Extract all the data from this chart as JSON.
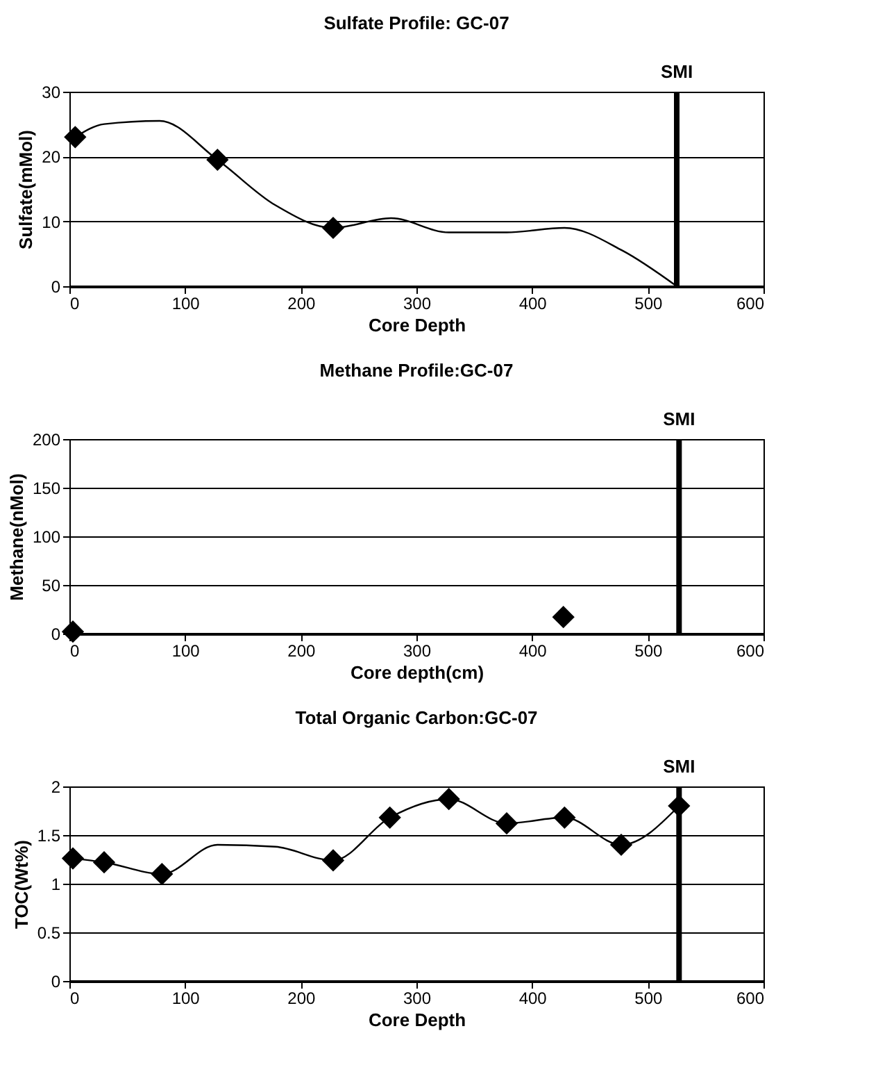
{
  "chart_data": [
    {
      "type": "line",
      "title": "Sulfate Profile: GC-07",
      "xlabel": "Core Depth",
      "ylabel": "Sulfate(mMol)",
      "xlim": [
        0,
        600
      ],
      "xticks": [
        0,
        100,
        200,
        300,
        400,
        500,
        600
      ],
      "ylim": [
        0,
        30
      ],
      "yticks": [
        0,
        10,
        20,
        30
      ],
      "grid": "y",
      "series": [
        {
          "color": "#000000",
          "marker": "none",
          "x": [
            5,
            30,
            78,
            128,
            178,
            228,
            278,
            328,
            378,
            428,
            478,
            525
          ],
          "values": [
            23,
            25,
            25.5,
            19.5,
            12.5,
            9,
            10.5,
            8.3,
            8.3,
            9,
            5.5,
            0
          ]
        },
        {
          "type": "scatter",
          "color": "#000000",
          "marker": "diamond",
          "x": [
            5,
            128,
            228
          ],
          "values": [
            23,
            19.5,
            9
          ]
        }
      ],
      "ref_lines": [
        {
          "axis": "x",
          "value": 525,
          "label": "SMI",
          "color": "#000000"
        }
      ]
    },
    {
      "type": "scatter",
      "title": "Methane Profile:GC-07",
      "xlabel": "Core depth(cm)",
      "ylabel": "Methane(nMol)",
      "xlim": [
        0,
        600
      ],
      "xticks": [
        0,
        100,
        200,
        300,
        400,
        500,
        600
      ],
      "ylim": [
        0,
        200
      ],
      "yticks": [
        0,
        50,
        100,
        150,
        200
      ],
      "grid": "y",
      "series": [
        {
          "color": "#000000",
          "marker": "diamond",
          "x": [
            3,
            427
          ],
          "values": [
            2,
            17
          ]
        }
      ],
      "ref_lines": [
        {
          "axis": "x",
          "value": 527,
          "label": "SMI",
          "color": "#000000"
        }
      ]
    },
    {
      "type": "line",
      "title": "Total Organic Carbon:GC-07",
      "xlabel": "Core Depth",
      "ylabel": "TOC(Wt%)",
      "xlim": [
        0,
        600
      ],
      "xticks": [
        0,
        100,
        200,
        300,
        400,
        500,
        600
      ],
      "ylim": [
        0,
        2
      ],
      "yticks": [
        0,
        0.5,
        1,
        1.5,
        2
      ],
      "grid": "y",
      "series": [
        {
          "color": "#000000",
          "marker": "none",
          "x": [
            3,
            30,
            80,
            128,
            178,
            228,
            277,
            328,
            378,
            428,
            477,
            527
          ],
          "values": [
            1.26,
            1.22,
            1.1,
            1.4,
            1.38,
            1.24,
            1.68,
            1.87,
            1.62,
            1.68,
            1.4,
            1.8
          ]
        },
        {
          "type": "scatter",
          "color": "#000000",
          "marker": "diamond",
          "x": [
            3,
            30,
            80,
            228,
            277,
            328,
            378,
            428,
            477,
            527
          ],
          "values": [
            1.26,
            1.22,
            1.1,
            1.24,
            1.68,
            1.87,
            1.62,
            1.68,
            1.4,
            1.8
          ]
        }
      ],
      "ref_lines": [
        {
          "axis": "x",
          "value": 527,
          "label": "SMI",
          "color": "#000000"
        }
      ]
    }
  ]
}
